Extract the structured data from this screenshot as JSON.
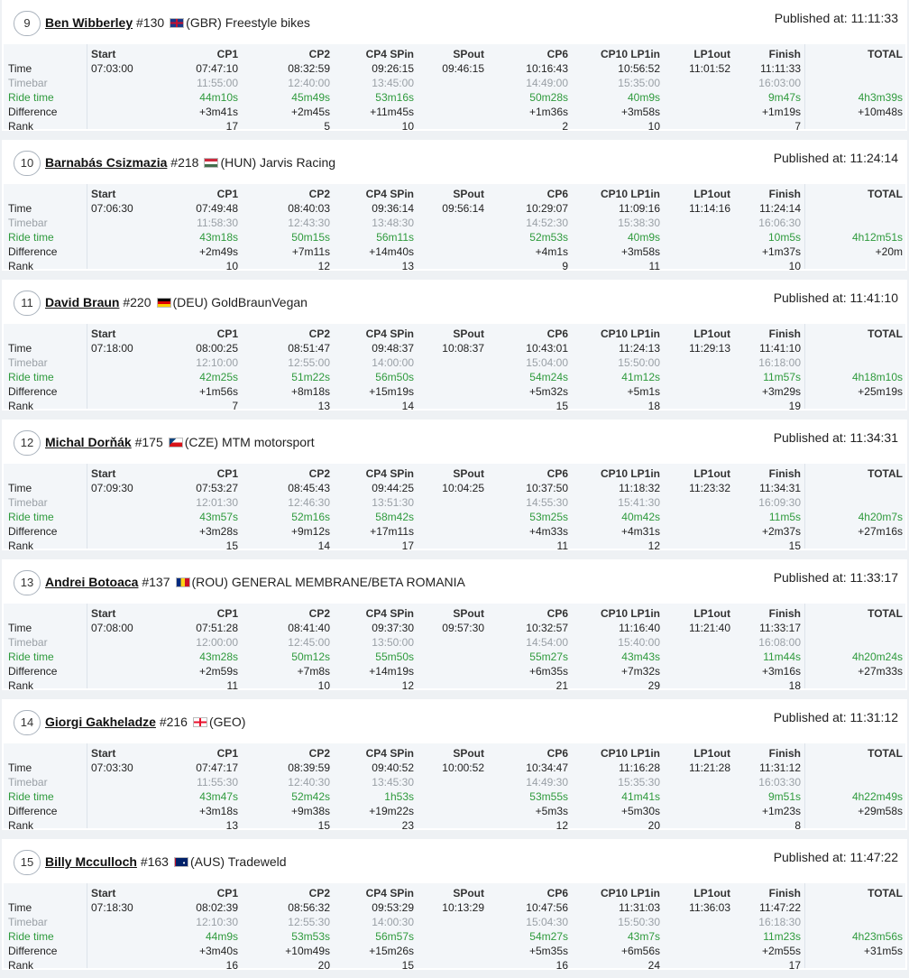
{
  "colors": {
    "ride_time": "#2e9a3c",
    "timebar": "#9aa0a6",
    "row_bg": "#f3f6f9"
  },
  "published_label": "Published at:",
  "columns": [
    "Start",
    "CP1",
    "CP2",
    "CP4 SPin",
    "SPout",
    "CP6",
    "CP10 LP1in",
    "LP1out",
    "Finish",
    "TOTAL"
  ],
  "row_labels": {
    "time": "Time",
    "timebar": "Timebar",
    "ride": "Ride time",
    "diff": "Difference",
    "rank": "Rank"
  },
  "riders": [
    {
      "position": "9",
      "name": "Ben Wibberley",
      "number": "#130",
      "country": "(GBR)",
      "flag": "gb-flag-icon",
      "team": "Freestyle bikes",
      "published": "11:11:33",
      "time": [
        "07:03:00",
        "07:47:10",
        "08:32:59",
        "09:26:15",
        "09:46:15",
        "10:16:43",
        "10:56:52",
        "11:01:52",
        "11:11:33",
        ""
      ],
      "timebar": [
        "",
        "11:55:00",
        "12:40:00",
        "13:45:00",
        "",
        "14:49:00",
        "15:35:00",
        "",
        "16:03:00",
        ""
      ],
      "ride": [
        "",
        "44m10s",
        "45m49s",
        "53m16s",
        "",
        "50m28s",
        "40m9s",
        "",
        "9m47s",
        "4h3m39s"
      ],
      "diff": [
        "",
        "+3m41s",
        "+2m45s",
        "+11m45s",
        "",
        "+1m36s",
        "+3m58s",
        "",
        "+1m19s",
        "+10m48s"
      ],
      "rank": [
        "",
        "17",
        "5",
        "10",
        "",
        "2",
        "10",
        "",
        "7",
        ""
      ]
    },
    {
      "position": "10",
      "name": "Barnabás Csizmazia",
      "number": "#218",
      "country": "(HUN)",
      "flag": "hu-flag-icon",
      "team": "Jarvis Racing",
      "published": "11:24:14",
      "time": [
        "07:06:30",
        "07:49:48",
        "08:40:03",
        "09:36:14",
        "09:56:14",
        "10:29:07",
        "11:09:16",
        "11:14:16",
        "11:24:14",
        ""
      ],
      "timebar": [
        "",
        "11:58:30",
        "12:43:30",
        "13:48:30",
        "",
        "14:52:30",
        "15:38:30",
        "",
        "16:06:30",
        ""
      ],
      "ride": [
        "",
        "43m18s",
        "50m15s",
        "56m11s",
        "",
        "52m53s",
        "40m9s",
        "",
        "10m5s",
        "4h12m51s"
      ],
      "diff": [
        "",
        "+2m49s",
        "+7m11s",
        "+14m40s",
        "",
        "+4m1s",
        "+3m58s",
        "",
        "+1m37s",
        "+20m"
      ],
      "rank": [
        "",
        "10",
        "12",
        "13",
        "",
        "9",
        "11",
        "",
        "10",
        ""
      ]
    },
    {
      "position": "11",
      "name": "David Braun",
      "number": "#220",
      "country": "(DEU)",
      "flag": "de-flag-icon",
      "team": "GoldBraunVegan",
      "published": "11:41:10",
      "time": [
        "07:18:00",
        "08:00:25",
        "08:51:47",
        "09:48:37",
        "10:08:37",
        "10:43:01",
        "11:24:13",
        "11:29:13",
        "11:41:10",
        ""
      ],
      "timebar": [
        "",
        "12:10:00",
        "12:55:00",
        "14:00:00",
        "",
        "15:04:00",
        "15:50:00",
        "",
        "16:18:00",
        ""
      ],
      "ride": [
        "",
        "42m25s",
        "51m22s",
        "56m50s",
        "",
        "54m24s",
        "41m12s",
        "",
        "11m57s",
        "4h18m10s"
      ],
      "diff": [
        "",
        "+1m56s",
        "+8m18s",
        "+15m19s",
        "",
        "+5m32s",
        "+5m1s",
        "",
        "+3m29s",
        "+25m19s"
      ],
      "rank": [
        "",
        "7",
        "13",
        "14",
        "",
        "15",
        "18",
        "",
        "19",
        ""
      ]
    },
    {
      "position": "12",
      "name": "Michal Dorňák",
      "number": "#175",
      "country": "(CZE)",
      "flag": "cz-flag-icon",
      "team": "MTM motorsport",
      "published": "11:34:31",
      "time": [
        "07:09:30",
        "07:53:27",
        "08:45:43",
        "09:44:25",
        "10:04:25",
        "10:37:50",
        "11:18:32",
        "11:23:32",
        "11:34:31",
        ""
      ],
      "timebar": [
        "",
        "12:01:30",
        "12:46:30",
        "13:51:30",
        "",
        "14:55:30",
        "15:41:30",
        "",
        "16:09:30",
        ""
      ],
      "ride": [
        "",
        "43m57s",
        "52m16s",
        "58m42s",
        "",
        "53m25s",
        "40m42s",
        "",
        "11m5s",
        "4h20m7s"
      ],
      "diff": [
        "",
        "+3m28s",
        "+9m12s",
        "+17m11s",
        "",
        "+4m33s",
        "+4m31s",
        "",
        "+2m37s",
        "+27m16s"
      ],
      "rank": [
        "",
        "15",
        "14",
        "17",
        "",
        "11",
        "12",
        "",
        "15",
        ""
      ]
    },
    {
      "position": "13",
      "name": "Andrei Botoaca",
      "number": "#137",
      "country": "(ROU)",
      "flag": "ro-flag-icon",
      "team": "GENERAL MEMBRANE/BETA ROMANIA",
      "published": "11:33:17",
      "time": [
        "07:08:00",
        "07:51:28",
        "08:41:40",
        "09:37:30",
        "09:57:30",
        "10:32:57",
        "11:16:40",
        "11:21:40",
        "11:33:17",
        ""
      ],
      "timebar": [
        "",
        "12:00:00",
        "12:45:00",
        "13:50:00",
        "",
        "14:54:00",
        "15:40:00",
        "",
        "16:08:00",
        ""
      ],
      "ride": [
        "",
        "43m28s",
        "50m12s",
        "55m50s",
        "",
        "55m27s",
        "43m43s",
        "",
        "11m44s",
        "4h20m24s"
      ],
      "diff": [
        "",
        "+2m59s",
        "+7m8s",
        "+14m19s",
        "",
        "+6m35s",
        "+7m32s",
        "",
        "+3m16s",
        "+27m33s"
      ],
      "rank": [
        "",
        "11",
        "10",
        "12",
        "",
        "21",
        "29",
        "",
        "18",
        ""
      ]
    },
    {
      "position": "14",
      "name": "Giorgi Gakheladze",
      "number": "#216",
      "country": "(GEO)",
      "flag": "ge-flag-icon",
      "team": "",
      "published": "11:31:12",
      "time": [
        "07:03:30",
        "07:47:17",
        "08:39:59",
        "09:40:52",
        "10:00:52",
        "10:34:47",
        "11:16:28",
        "11:21:28",
        "11:31:12",
        ""
      ],
      "timebar": [
        "",
        "11:55:30",
        "12:40:30",
        "13:45:30",
        "",
        "14:49:30",
        "15:35:30",
        "",
        "16:03:30",
        ""
      ],
      "ride": [
        "",
        "43m47s",
        "52m42s",
        "1h53s",
        "",
        "53m55s",
        "41m41s",
        "",
        "9m51s",
        "4h22m49s"
      ],
      "diff": [
        "",
        "+3m18s",
        "+9m38s",
        "+19m22s",
        "",
        "+5m3s",
        "+5m30s",
        "",
        "+1m23s",
        "+29m58s"
      ],
      "rank": [
        "",
        "13",
        "15",
        "23",
        "",
        "12",
        "20",
        "",
        "8",
        ""
      ]
    },
    {
      "position": "15",
      "name": "Billy Mcculloch",
      "number": "#163",
      "country": "(AUS)",
      "flag": "au-flag-icon",
      "team": "Tradeweld",
      "published": "11:47:22",
      "time": [
        "07:18:30",
        "08:02:39",
        "08:56:32",
        "09:53:29",
        "10:13:29",
        "10:47:56",
        "11:31:03",
        "11:36:03",
        "11:47:22",
        ""
      ],
      "timebar": [
        "",
        "12:10:30",
        "12:55:30",
        "14:00:30",
        "",
        "15:04:30",
        "15:50:30",
        "",
        "16:18:30",
        ""
      ],
      "ride": [
        "",
        "44m9s",
        "53m53s",
        "56m57s",
        "",
        "54m27s",
        "43m7s",
        "",
        "11m23s",
        "4h23m56s"
      ],
      "diff": [
        "",
        "+3m40s",
        "+10m49s",
        "+15m26s",
        "",
        "+5m35s",
        "+6m56s",
        "",
        "+2m55s",
        "+31m5s"
      ],
      "rank": [
        "",
        "16",
        "20",
        "15",
        "",
        "16",
        "24",
        "",
        "17",
        ""
      ]
    }
  ]
}
